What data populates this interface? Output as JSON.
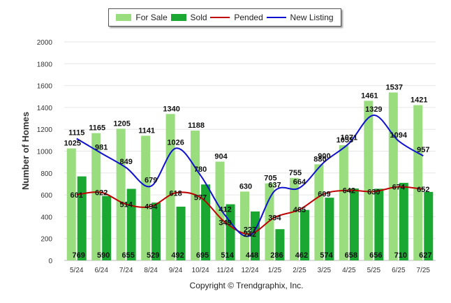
{
  "chart_data": {
    "type": "bar",
    "title": "",
    "xlabel": "",
    "ylabel": "Number of Homes",
    "ylim": [
      0,
      2000
    ],
    "yticks": [
      0,
      200,
      400,
      600,
      800,
      1000,
      1200,
      1400,
      1600,
      1800,
      2000
    ],
    "grid": true,
    "legend_position": "top-center",
    "categories": [
      "5/24",
      "6/24",
      "7/24",
      "8/24",
      "9/24",
      "10/24",
      "11/24",
      "12/24",
      "1/25",
      "2/25",
      "3/25",
      "4/25",
      "5/25",
      "6/25",
      "7/25"
    ],
    "series": [
      {
        "name": "For Sale",
        "type": "bar",
        "color": "#99dd7f",
        "values": [
          1025,
          1165,
          1205,
          1141,
          1340,
          1188,
          904,
          630,
          705,
          755,
          880,
          1055,
          1461,
          1537,
          1421
        ]
      },
      {
        "name": "Sold",
        "type": "bar",
        "color": "#1aa832",
        "values": [
          769,
          590,
          655,
          529,
          492,
          695,
          514,
          448,
          286,
          462,
          574,
          658,
          656,
          710,
          627
        ]
      },
      {
        "name": "Pended",
        "type": "line",
        "color": "#c00000",
        "values": [
          601,
          622,
          514,
          494,
          618,
          577,
          349,
          242,
          394,
          465,
          609,
          642,
          630,
          674,
          652
        ]
      },
      {
        "name": "New Listing",
        "type": "line",
        "color": "#1010d0",
        "values": [
          1115,
          981,
          849,
          679,
          1026,
          780,
          412,
          227,
          637,
          664,
          900,
          1071,
          1329,
          1094,
          957
        ]
      }
    ],
    "footer": "Copyright © Trendgraphix, Inc."
  }
}
